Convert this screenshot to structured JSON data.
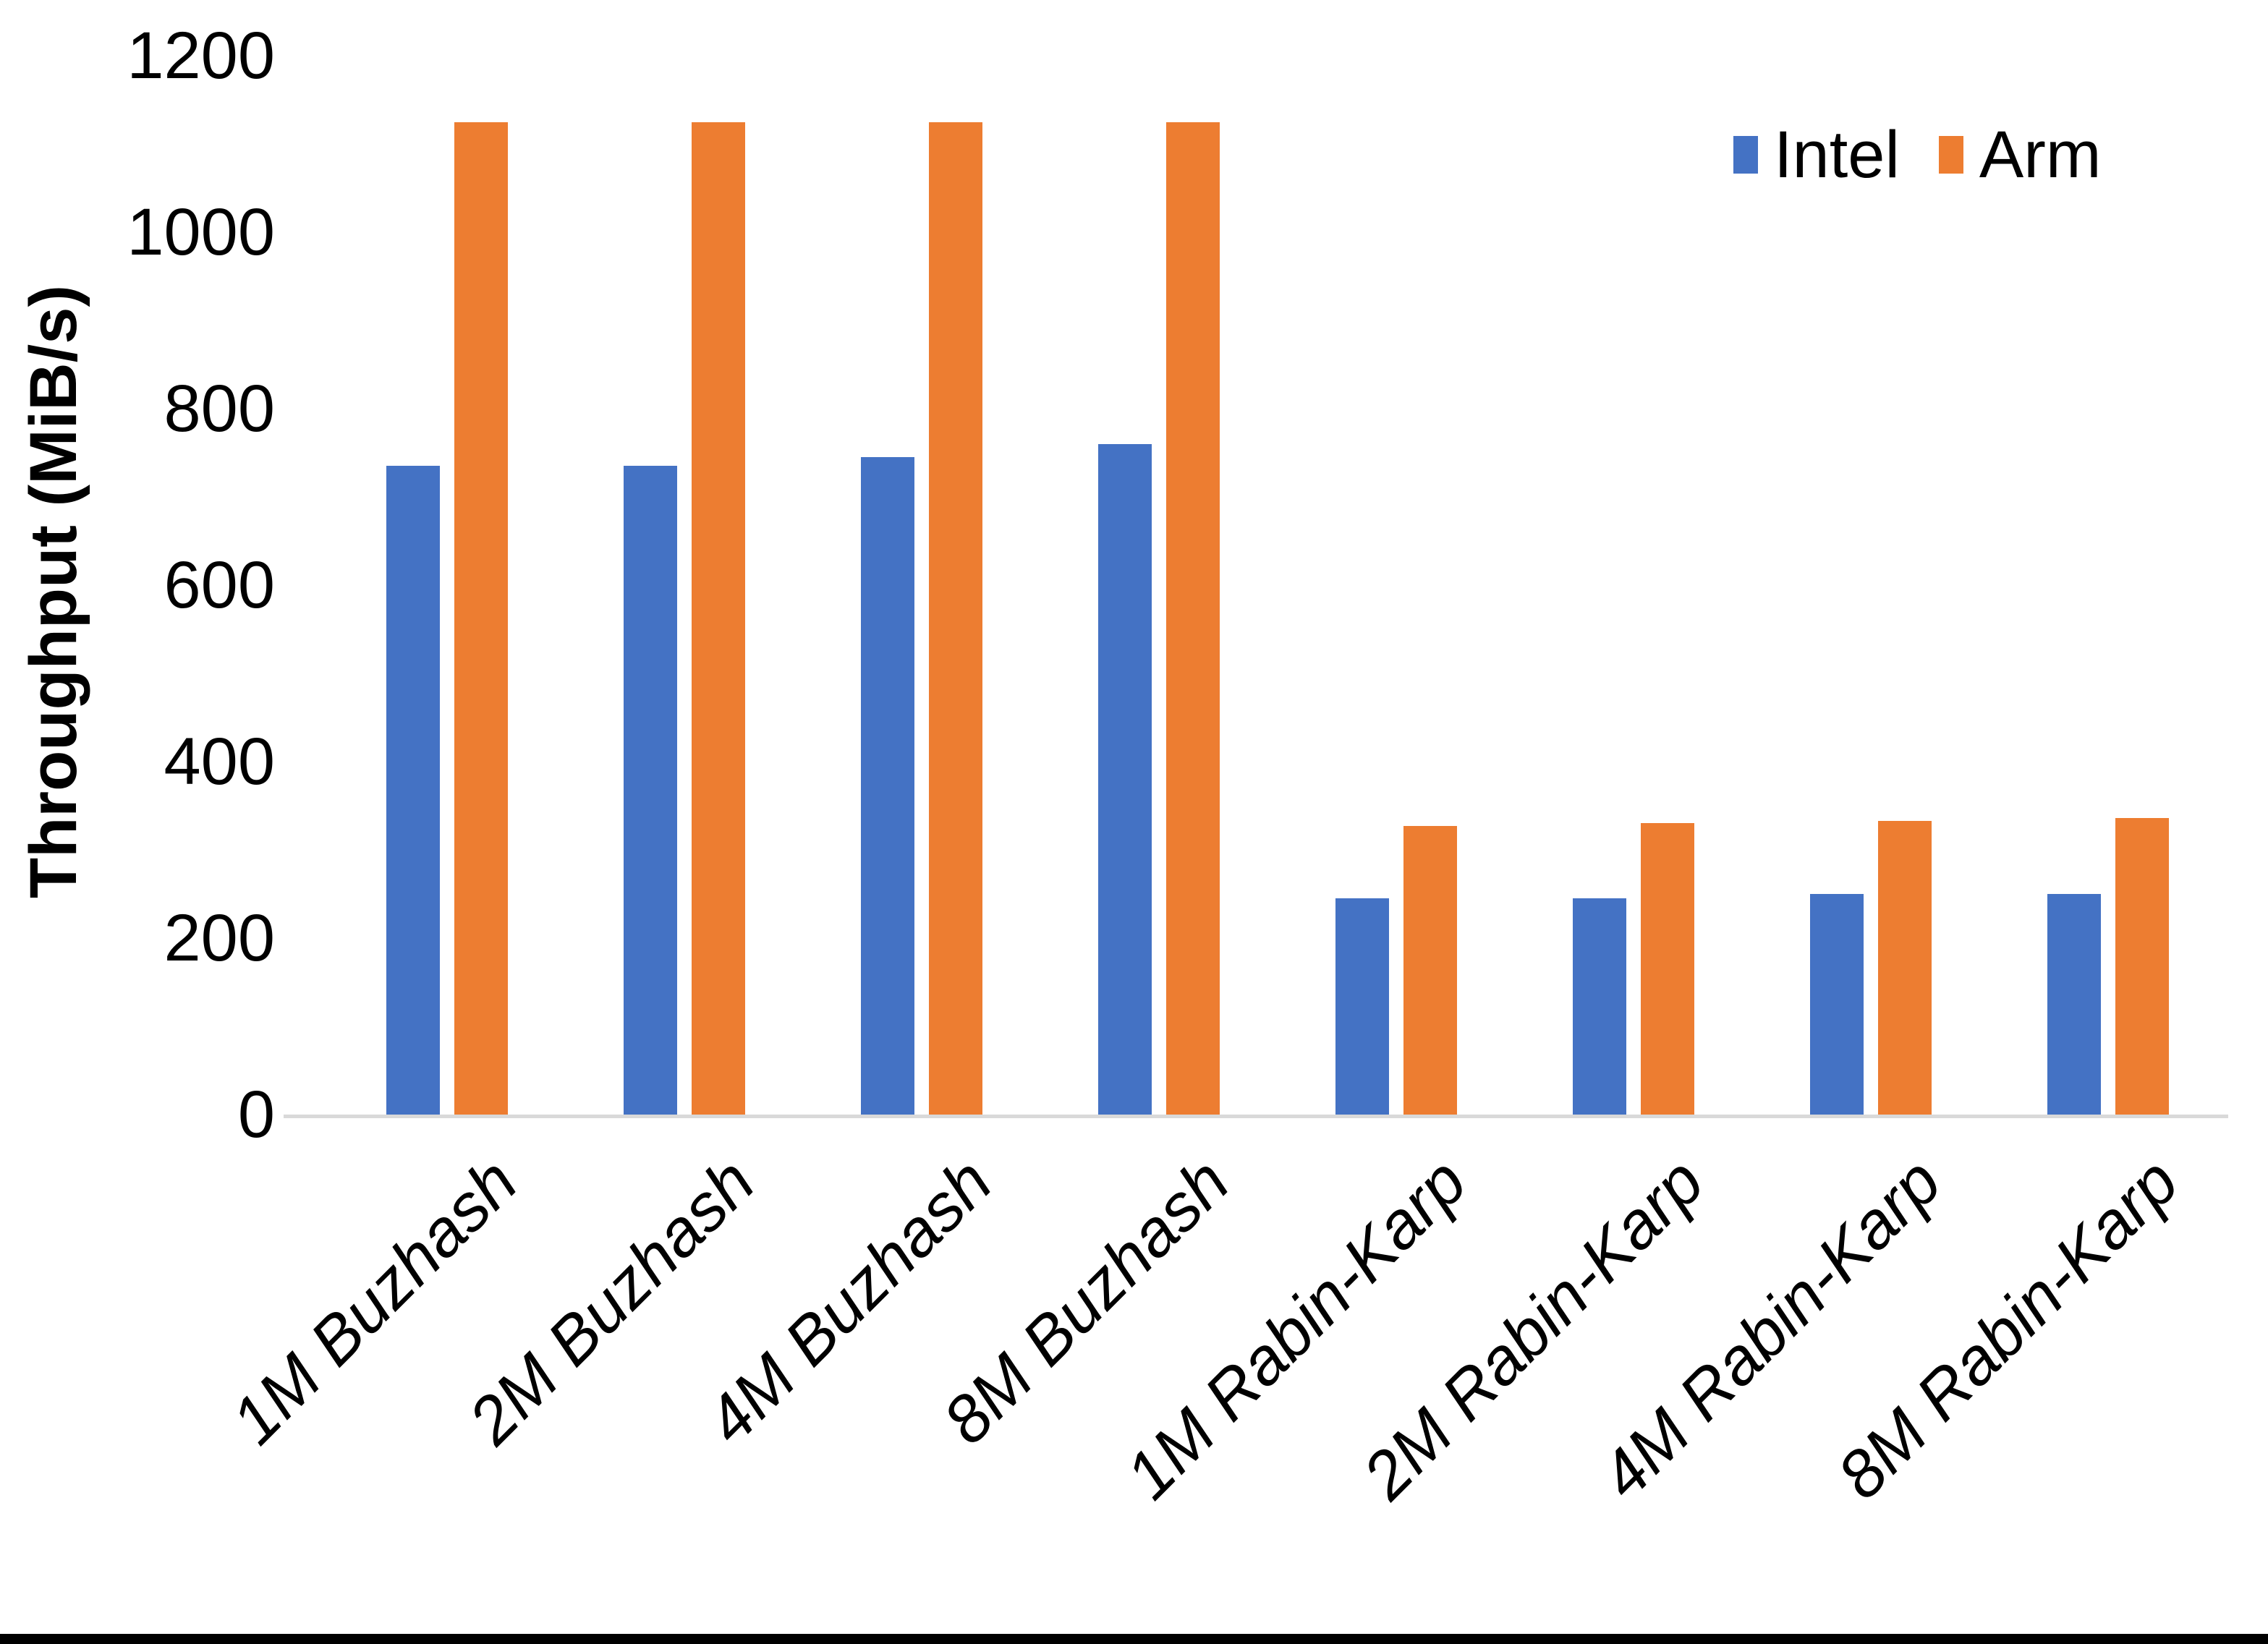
{
  "chart_data": {
    "type": "bar",
    "title": "",
    "xlabel": "",
    "ylabel": "Throughput (MiB/s)",
    "ylim": [
      0,
      1200
    ],
    "yticks": [
      0,
      200,
      400,
      600,
      800,
      1000,
      1200
    ],
    "grid": false,
    "legend_position": "top-right",
    "axis_line_color": "#d9d9d9",
    "categories": [
      "1M Buzhash",
      "2M Buzhash",
      "4M Buzhash",
      "8M Buzhash",
      "1M Rabin-Karp",
      "2M Rabin-Karp",
      "4M Rabin-Karp",
      "8M Rabin-Karp"
    ],
    "series": [
      {
        "name": "Intel",
        "color": "#4472C4",
        "values": [
          735,
          735,
          745,
          760,
          245,
          245,
          250,
          250
        ]
      },
      {
        "name": "Arm",
        "color": "#ED7D31",
        "values": [
          1125,
          1125,
          1125,
          1125,
          327,
          330,
          333,
          336
        ]
      }
    ]
  }
}
